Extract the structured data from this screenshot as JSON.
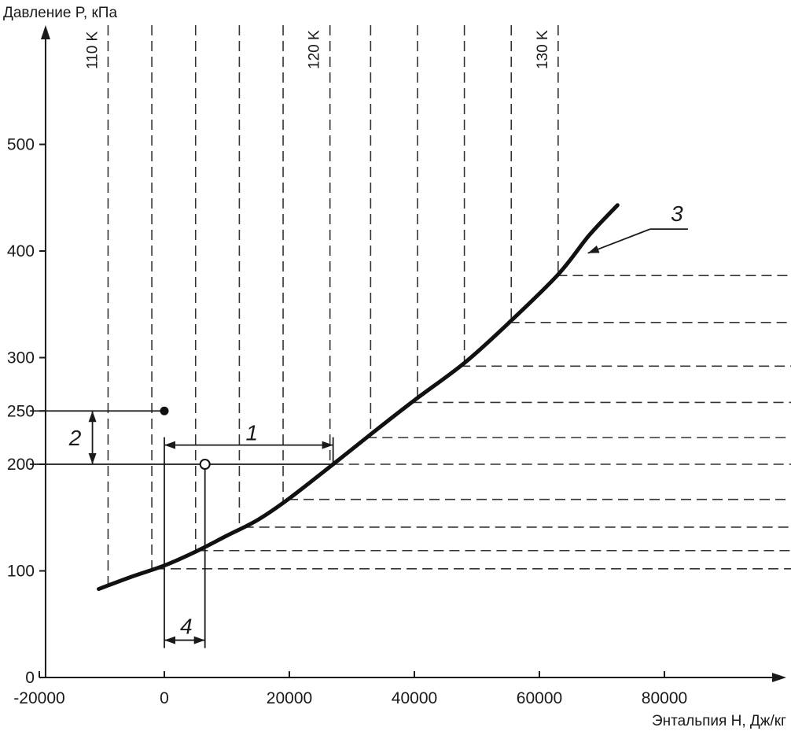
{
  "chart_data": {
    "type": "line",
    "xlabel": "Энтальпия H, Дж/кг",
    "ylabel": "Давление P, кПа",
    "xlim": [
      -20000,
      100000
    ],
    "ylim": [
      0,
      600
    ],
    "x_ticks": [
      {
        "value": -20000,
        "label": "-20000"
      },
      {
        "value": 0,
        "label": "0"
      },
      {
        "value": 20000,
        "label": "20000"
      },
      {
        "value": 40000,
        "label": "40000"
      },
      {
        "value": 60000,
        "label": "60000"
      },
      {
        "value": 80000,
        "label": "80000"
      }
    ],
    "y_ticks": [
      {
        "value": 0,
        "label": "0"
      },
      {
        "value": 100,
        "label": "100"
      },
      {
        "value": 200,
        "label": "200"
      },
      {
        "value": 250,
        "label": "250"
      },
      {
        "value": 300,
        "label": "300"
      },
      {
        "value": 400,
        "label": "400"
      },
      {
        "value": 500,
        "label": "500"
      }
    ],
    "series": [
      {
        "x": [
          -10500,
          -5000,
          0,
          5000,
          10000,
          15000,
          20000,
          27000,
          33000,
          40000,
          48000,
          55000,
          63000,
          68000,
          72500
        ],
        "y": [
          83,
          95,
          105,
          118,
          133,
          148,
          168,
          200,
          228,
          260,
          295,
          332,
          378,
          415,
          443
        ]
      }
    ],
    "isotherms": {
      "x_values": [
        -9000,
        -2000,
        5000,
        12000,
        19000,
        26500,
        33000,
        40500,
        48000,
        55500,
        63000
      ],
      "labels": [
        {
          "index": 0,
          "text": "110 K"
        },
        {
          "index": 5,
          "text": "120 K"
        },
        {
          "index": 10,
          "text": "130 K"
        }
      ]
    },
    "horizontal_dashes_y": [
      102,
      119,
      141,
      167,
      200,
      225,
      258,
      292,
      333,
      377
    ],
    "annotations": {
      "point_filled": {
        "x": 0,
        "y": 250
      },
      "point_open": {
        "x": 6500,
        "y": 200
      },
      "marker_1": {
        "label": "1",
        "x_from": 0,
        "x_to": 27000,
        "y": 218
      },
      "marker_2": {
        "label": "2",
        "y_from": 200,
        "y_to": 250,
        "x": -11500
      },
      "marker_3": {
        "label": "3",
        "x": 81500,
        "y": 425,
        "target_x": 67000,
        "target_y": 398
      },
      "marker_4": {
        "label": "4",
        "x_from": 0,
        "x_to": 6500,
        "y": 35
      }
    },
    "grid": false,
    "legend": "none"
  }
}
